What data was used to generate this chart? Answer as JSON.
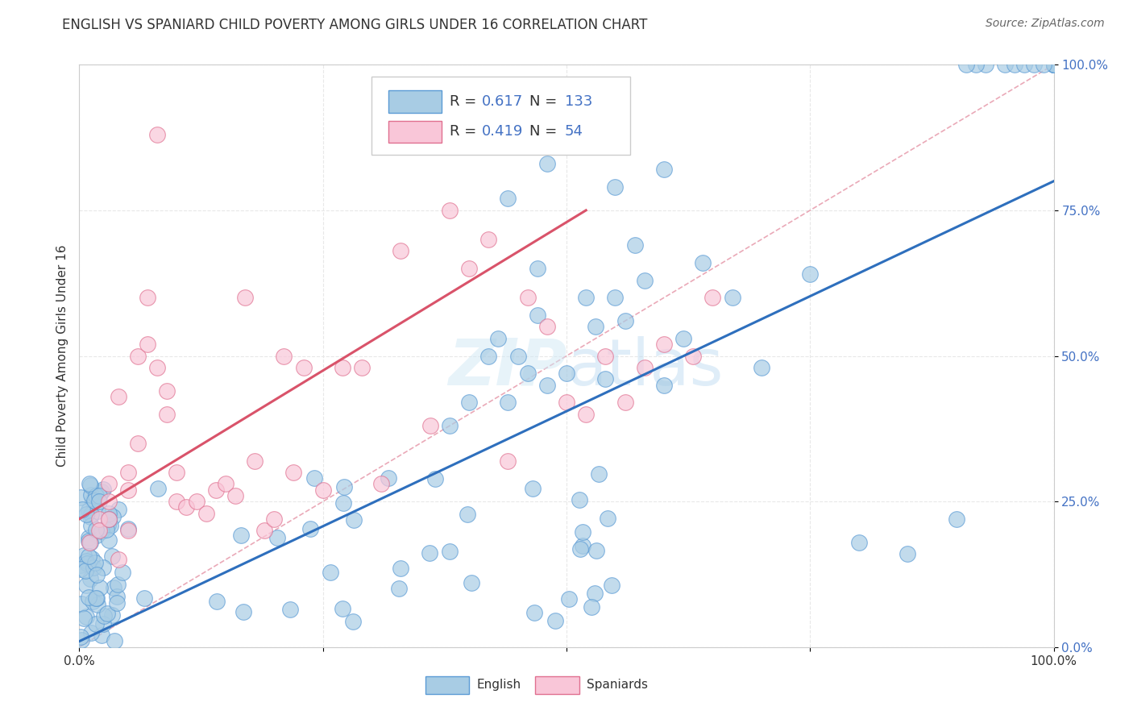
{
  "title": "ENGLISH VS SPANIARD CHILD POVERTY AMONG GIRLS UNDER 16 CORRELATION CHART",
  "source": "Source: ZipAtlas.com",
  "ylabel": "Child Poverty Among Girls Under 16",
  "watermark": "ZIPatlas",
  "english_R": 0.617,
  "english_N": 133,
  "spaniard_R": 0.419,
  "spaniard_N": 54,
  "english_color": "#a8cce4",
  "spaniard_color": "#f9c6d8",
  "english_edge_color": "#5b9bd5",
  "spaniard_edge_color": "#e07090",
  "english_line_color": "#2e6fbd",
  "spaniard_line_color": "#d9536a",
  "ref_line_color": "#e8a0b0",
  "background_color": "#ffffff",
  "grid_color": "#e8e8e8",
  "xlim": [
    0,
    1
  ],
  "ylim": [
    0,
    1
  ],
  "xticks": [
    0,
    0.25,
    0.5,
    0.75,
    1.0
  ],
  "yticks": [
    0,
    0.25,
    0.5,
    0.75,
    1.0
  ],
  "xticklabels": [
    "0.0%",
    "",
    "",
    "",
    "100.0%"
  ],
  "yticklabels": [
    "0.0%",
    "25.0%",
    "50.0%",
    "75.0%",
    "100.0%"
  ],
  "figsize": [
    14.06,
    8.92
  ],
  "dpi": 100,
  "eng_line_x0": 0.0,
  "eng_line_y0": 0.01,
  "eng_line_x1": 1.0,
  "eng_line_y1": 0.8,
  "spa_line_x0": 0.0,
  "spa_line_y0": 0.22,
  "spa_line_x1": 0.52,
  "spa_line_y1": 0.75
}
